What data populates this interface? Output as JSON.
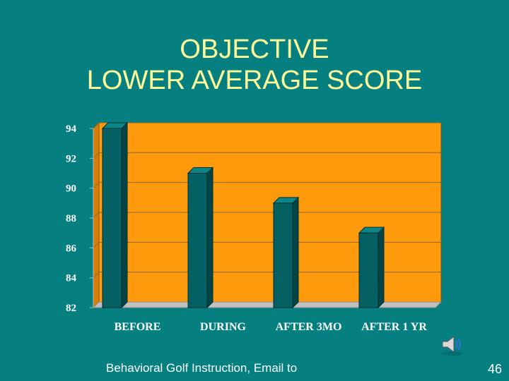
{
  "title": {
    "line1": "OBJECTIVE",
    "line2": "LOWER AVERAGE SCORE"
  },
  "footer": {
    "text": "Behavioral Golf Instruction,  Email to",
    "page_number": "46"
  },
  "colors": {
    "background": "#057f80",
    "plot_area": "#ff9a0d",
    "bar_front": "#056064",
    "bar_side": "#034547",
    "bar_top": "#0b8585",
    "title_text": "#ffff99"
  },
  "icons": {
    "speaker": "speaker-icon"
  },
  "chart_data": {
    "type": "bar",
    "categories": [
      "BEFORE",
      "DURING",
      "AFTER 3MO",
      "AFTER 1 YR"
    ],
    "values": [
      94,
      91,
      89,
      87
    ],
    "ylim": [
      82,
      94
    ],
    "yticks": [
      82,
      84,
      86,
      88,
      90,
      92,
      94
    ],
    "grid": true,
    "three_d": true
  }
}
